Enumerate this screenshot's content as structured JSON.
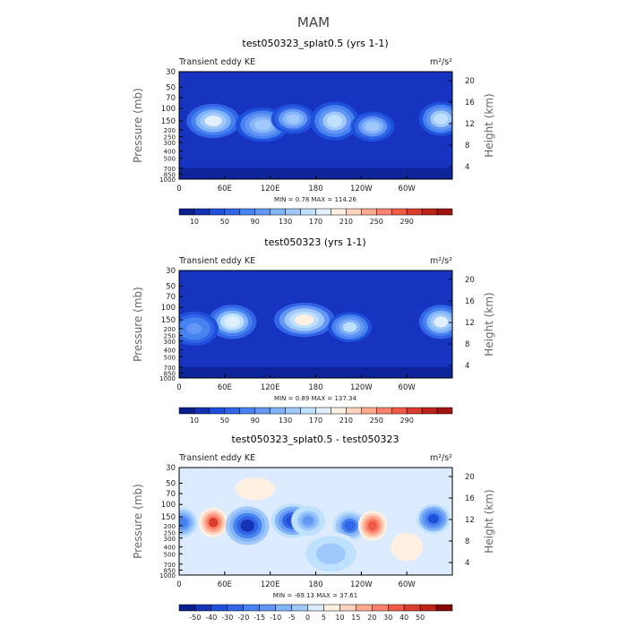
{
  "figure": {
    "title": "MAM",
    "colors": {
      "ke_scale": [
        "#0a1e8c",
        "#1432b4",
        "#1e50dc",
        "#3264e6",
        "#4682f0",
        "#6496f5",
        "#82b4fa",
        "#a0c8fa",
        "#bee1ff",
        "#e1f0ff",
        "#fff0e1",
        "#ffd2be",
        "#ffaa8c",
        "#fa826e",
        "#f05a46",
        "#dc3c2d",
        "#be2319",
        "#a01410",
        "#820a08"
      ],
      "diff_scale": [
        "#0a1e8c",
        "#1432b4",
        "#1e50dc",
        "#3264e6",
        "#4682f0",
        "#6496f5",
        "#82b4fa",
        "#a0c8fa",
        "#bee1ff",
        "#dcebff",
        "#fff0e1",
        "#ffd2be",
        "#ffaa8c",
        "#fa826e",
        "#f05a46",
        "#dc3c2d",
        "#be2319",
        "#820a08"
      ],
      "ke_background": "#1634c0",
      "diff_background": "#dcebff"
    }
  },
  "chart_data": [
    {
      "type": "heatmap",
      "title": "test050323_splat0.5 (yrs 1-1)",
      "subtitle_left": "Transient eddy KE",
      "units": "m²/s²",
      "xlabel": "",
      "x_ticks": [
        "0",
        "60E",
        "120E",
        "180",
        "120W",
        "60W"
      ],
      "x_tick_values": [
        0,
        60,
        120,
        180,
        240,
        300
      ],
      "xlim": [
        0,
        360
      ],
      "ylabel_left": "Pressure (mb)",
      "y_ticks_left": [
        "30",
        "50",
        "70",
        "100",
        "150",
        "200",
        "250",
        "300",
        "400",
        "500",
        "700",
        "850",
        "1000"
      ],
      "y_tick_values": [
        30,
        50,
        70,
        100,
        150,
        200,
        250,
        300,
        400,
        500,
        700,
        850,
        1000
      ],
      "ylim": [
        1000,
        30
      ],
      "ylabel_right": "Height (km)",
      "y_ticks_right": [
        "4",
        "8",
        "12",
        "16",
        "20"
      ],
      "y_right_values": [
        4,
        8,
        12,
        16,
        20
      ],
      "stats_text": "MIN =   0.78   MAX = 114.26",
      "min": 0.78,
      "max": 114.26,
      "colorbar_labels": [
        "10",
        "50",
        "90",
        "130",
        "170",
        "210",
        "250",
        "290"
      ],
      "colorbar_label_bins": [
        1,
        3,
        5,
        7,
        9,
        11,
        13,
        15
      ],
      "colorbar_levels": 18,
      "features": [
        {
          "lon": 45,
          "p": 150,
          "dlon": 22,
          "dlnp": 0.4,
          "value": 95
        },
        {
          "lon": 110,
          "p": 170,
          "dlon": 22,
          "dlnp": 0.4,
          "value": 75
        },
        {
          "lon": 150,
          "p": 140,
          "dlon": 18,
          "dlnp": 0.35,
          "value": 70
        },
        {
          "lon": 205,
          "p": 150,
          "dlon": 20,
          "dlnp": 0.45,
          "value": 85
        },
        {
          "lon": 255,
          "p": 180,
          "dlon": 18,
          "dlnp": 0.35,
          "value": 70
        },
        {
          "lon": 345,
          "p": 140,
          "dlon": 18,
          "dlnp": 0.4,
          "value": 85
        }
      ]
    },
    {
      "type": "heatmap",
      "title": "test050323 (yrs 1-1)",
      "subtitle_left": "Transient eddy KE",
      "units": "m²/s²",
      "xlabel": "",
      "x_ticks": [
        "0",
        "60E",
        "120E",
        "180",
        "120W",
        "60W"
      ],
      "x_tick_values": [
        0,
        60,
        120,
        180,
        240,
        300
      ],
      "xlim": [
        0,
        360
      ],
      "ylabel_left": "Pressure (mb)",
      "y_ticks_left": [
        "30",
        "50",
        "70",
        "100",
        "150",
        "200",
        "250",
        "300",
        "400",
        "500",
        "700",
        "850",
        "1000"
      ],
      "y_tick_values": [
        30,
        50,
        70,
        100,
        150,
        200,
        250,
        300,
        400,
        500,
        700,
        850,
        1000
      ],
      "ylim": [
        1000,
        30
      ],
      "ylabel_right": "Height (km)",
      "y_ticks_right": [
        "4",
        "8",
        "12",
        "16",
        "20"
      ],
      "y_right_values": [
        4,
        8,
        12,
        16,
        20
      ],
      "stats_text": "MIN =   0.89   MAX = 137.34",
      "min": 0.89,
      "max": 137.34,
      "colorbar_labels": [
        "10",
        "50",
        "90",
        "130",
        "170",
        "210",
        "250",
        "290"
      ],
      "colorbar_label_bins": [
        1,
        3,
        5,
        7,
        9,
        11,
        13,
        15
      ],
      "colorbar_levels": 18,
      "features": [
        {
          "lon": 70,
          "p": 160,
          "dlon": 20,
          "dlnp": 0.4,
          "value": 100
        },
        {
          "lon": 165,
          "p": 150,
          "dlon": 25,
          "dlnp": 0.4,
          "value": 110
        },
        {
          "lon": 225,
          "p": 190,
          "dlon": 18,
          "dlnp": 0.35,
          "value": 80
        },
        {
          "lon": 345,
          "p": 160,
          "dlon": 18,
          "dlnp": 0.4,
          "value": 90
        },
        {
          "lon": 20,
          "p": 200,
          "dlon": 20,
          "dlnp": 0.4,
          "value": 50
        }
      ]
    },
    {
      "type": "heatmap",
      "title": "test050323_splat0.5 - test050323",
      "subtitle_left": "Transient eddy KE",
      "units": "m²/s²",
      "xlabel": "",
      "x_ticks": [
        "0",
        "60E",
        "120E",
        "180",
        "120W",
        "60W"
      ],
      "x_tick_values": [
        0,
        60,
        120,
        180,
        240,
        300
      ],
      "xlim": [
        0,
        360
      ],
      "ylabel_left": "Pressure (mb)",
      "y_ticks_left": [
        "30",
        "50",
        "70",
        "100",
        "150",
        "200",
        "250",
        "300",
        "400",
        "500",
        "700",
        "850",
        "1000"
      ],
      "y_tick_values": [
        30,
        50,
        70,
        100,
        150,
        200,
        250,
        300,
        400,
        500,
        700,
        850,
        1000
      ],
      "ylim": [
        1000,
        30
      ],
      "ylabel_right": "Height (km)",
      "y_ticks_right": [
        "4",
        "8",
        "12",
        "16",
        "20"
      ],
      "y_right_values": [
        4,
        8,
        12,
        16,
        20
      ],
      "stats_text": "MIN = -69.13   MAX =  37.61",
      "min": -69.13,
      "max": 37.61,
      "colorbar_labels": [
        "-50",
        "-40",
        "-30",
        "-20",
        "-15",
        "-10",
        "-5",
        "0",
        "5",
        "10",
        "15",
        "20",
        "30",
        "40",
        "50"
      ],
      "colorbar_label_bins": [
        1,
        2,
        3,
        4,
        5,
        6,
        7,
        8,
        9,
        10,
        11,
        12,
        13,
        14,
        15
      ],
      "colorbar_levels": 17,
      "features": [
        {
          "lon": 5,
          "p": 180,
          "dlon": 12,
          "dlnp": 0.35,
          "value": -35
        },
        {
          "lon": 45,
          "p": 180,
          "dlon": 12,
          "dlnp": 0.35,
          "value": 38
        },
        {
          "lon": 90,
          "p": 200,
          "dlon": 18,
          "dlnp": 0.45,
          "value": -55
        },
        {
          "lon": 150,
          "p": 170,
          "dlon": 18,
          "dlnp": 0.4,
          "value": -50
        },
        {
          "lon": 170,
          "p": 170,
          "dlon": 14,
          "dlnp": 0.35,
          "value": -25
        },
        {
          "lon": 225,
          "p": 200,
          "dlon": 14,
          "dlnp": 0.35,
          "value": -40
        },
        {
          "lon": 255,
          "p": 200,
          "dlon": 12,
          "dlnp": 0.35,
          "value": 32
        },
        {
          "lon": 335,
          "p": 160,
          "dlon": 14,
          "dlnp": 0.35,
          "value": -45
        },
        {
          "lon": 200,
          "p": 500,
          "dlon": 25,
          "dlnp": 0.5,
          "value": -15
        },
        {
          "lon": 100,
          "p": 60,
          "dlon": 25,
          "dlnp": 0.4,
          "value": 6
        },
        {
          "lon": 300,
          "p": 400,
          "dlon": 20,
          "dlnp": 0.5,
          "value": 8
        }
      ]
    }
  ]
}
